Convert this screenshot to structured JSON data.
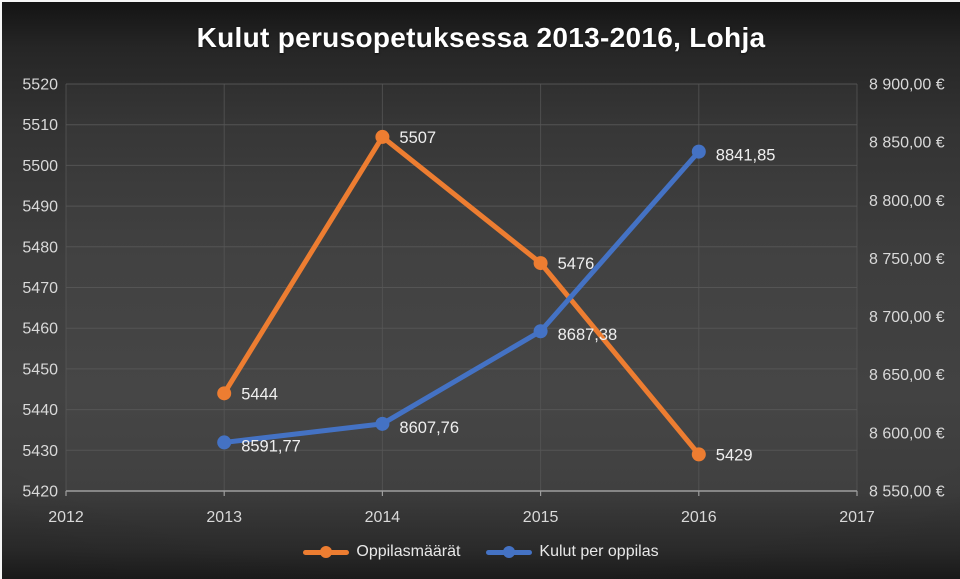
{
  "title": "Kulut perusopetuksessa 2013-2016, Lohja",
  "colors": {
    "series_orange": "#ED7D31",
    "series_blue": "#4472C4",
    "text": "#E8E8E8",
    "title_text": "#FFFFFF",
    "gridline": "#575757",
    "axis_line": "#9E9E9E",
    "plot_fill": "rgba(255,255,255,0.025)"
  },
  "chart_data": {
    "type": "line",
    "title": "Kulut perusopetuksessa 2013-2016, Lohja",
    "x": [
      2013,
      2014,
      2015,
      2016
    ],
    "x_axis_ticks": [
      2012,
      2013,
      2014,
      2015,
      2016,
      2017
    ],
    "series": [
      {
        "name": "Oppilasmäärät",
        "axis": "left",
        "color": "#ED7D31",
        "values": [
          5444,
          5507,
          5476,
          5429
        ],
        "labels": [
          "5444",
          "5507",
          "5476",
          "5429"
        ]
      },
      {
        "name": "Kulut per oppilas",
        "axis": "right",
        "color": "#4472C4",
        "values": [
          8591.77,
          8607.76,
          8687.38,
          8841.85
        ],
        "labels": [
          "8591,77",
          "8607,76",
          "8687,38",
          "8841,85"
        ]
      }
    ],
    "left_axis": {
      "min": 5420,
      "max": 5520,
      "step": 10,
      "tick_labels": [
        "5420",
        "5430",
        "5440",
        "5450",
        "5460",
        "5470",
        "5480",
        "5490",
        "5500",
        "5510",
        "5520"
      ]
    },
    "right_axis": {
      "min": 8550,
      "max": 8900,
      "step": 50,
      "tick_labels": [
        "8 550,00 €",
        "8 600,00 €",
        "8 650,00 €",
        "8 700,00 €",
        "8 750,00 €",
        "8 800,00 €",
        "8 850,00 €",
        "8 900,00 €"
      ]
    },
    "legend": [
      "Oppilasmäärät",
      "Kulut per oppilas"
    ],
    "legend_position": "bottom",
    "grid": true
  }
}
